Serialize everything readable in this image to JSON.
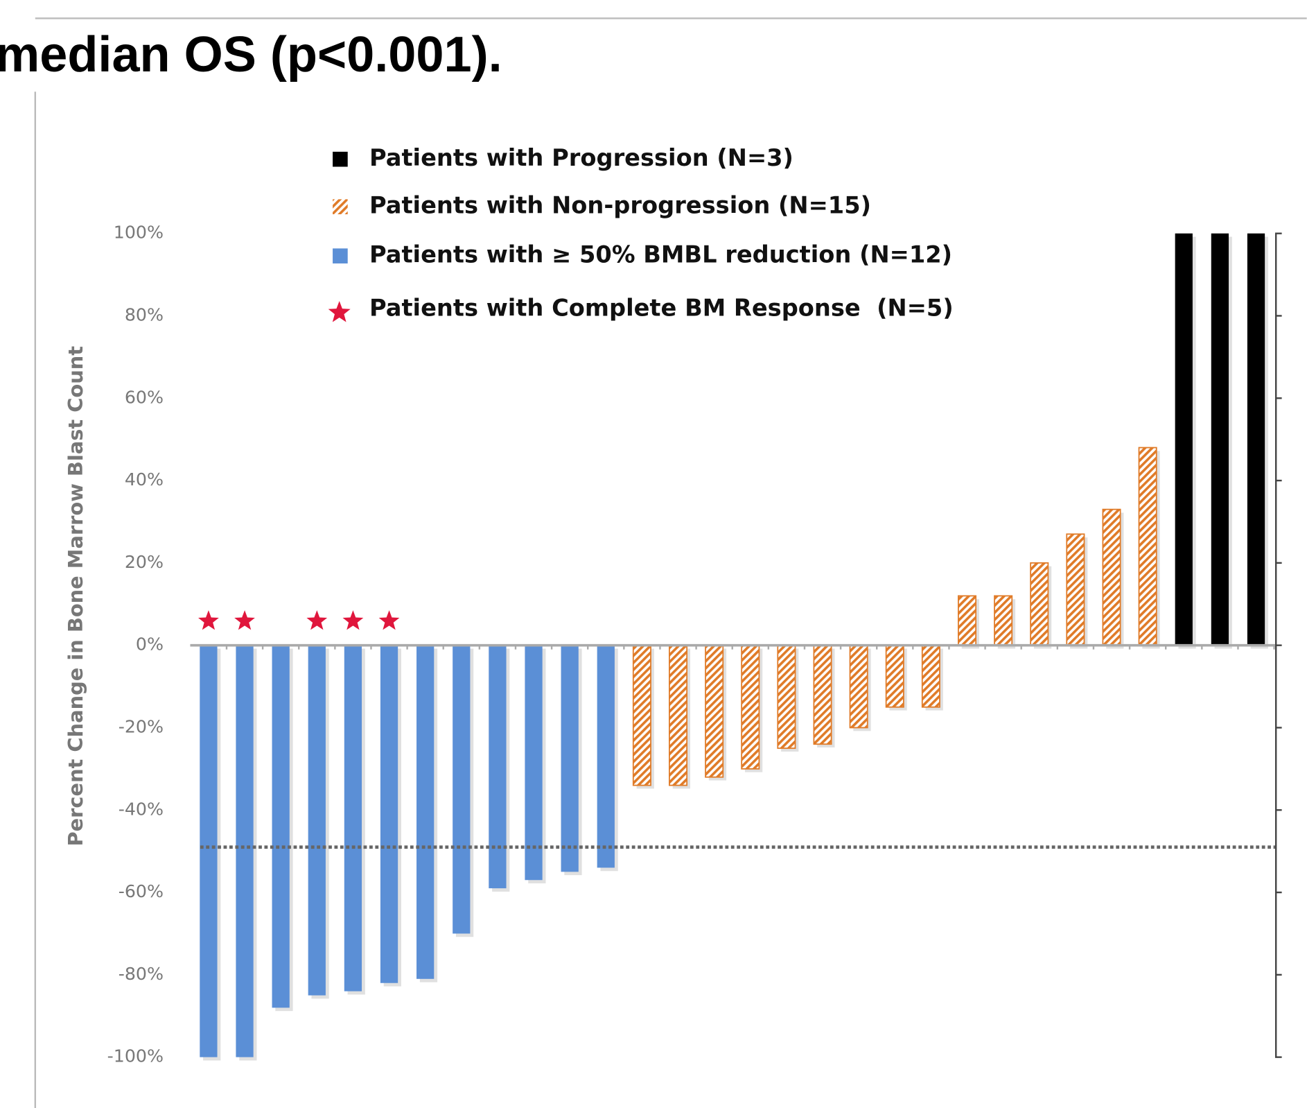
{
  "chart_data": {
    "type": "waterfall",
    "title": "median OS (p<0.001).",
    "ylabel": "Percent Change in Bone Marrow Blast Count",
    "ylim": [
      -100,
      100
    ],
    "yticks": [
      {
        "value": -100,
        "label": "-100%"
      },
      {
        "value": -80,
        "label": "-80%"
      },
      {
        "value": -60,
        "label": "-60%"
      },
      {
        "value": -40,
        "label": "-40%"
      },
      {
        "value": -20,
        "label": "-20%"
      },
      {
        "value": 0,
        "label": "0%"
      },
      {
        "value": 20,
        "label": "20%"
      },
      {
        "value": 40,
        "label": "40%"
      },
      {
        "value": 60,
        "label": "60%"
      },
      {
        "value": 80,
        "label": "80%"
      },
      {
        "value": 100,
        "label": "100%"
      }
    ],
    "legend_order": [
      2,
      1,
      0
    ],
    "series": [
      {
        "name": "Patients with ≥ 50% BMBL reduction (N=12)",
        "color": "#5b8fd6",
        "hatched": false,
        "values": [
          -100,
          -100,
          -88,
          -85,
          -84,
          -82,
          -81,
          -70,
          -59,
          -57,
          -55,
          -54
        ]
      },
      {
        "name": "Patients with Non-progression (N=15)",
        "color": "#e07b28",
        "hatched": true,
        "values": [
          -34,
          -34,
          -32,
          -30,
          -25,
          -24,
          -20,
          -15,
          -15,
          12,
          12,
          20,
          27,
          33,
          48
        ]
      },
      {
        "name": "Patients with Progression (N=3)",
        "color": "#000000",
        "hatched": false,
        "values": [
          100,
          100,
          100
        ]
      }
    ],
    "stars": {
      "name": "Patients with Complete BM Response  (N=5)",
      "color": "#e0163c",
      "bars": [
        0,
        1,
        3,
        4,
        5
      ]
    },
    "reference_line": -49
  }
}
